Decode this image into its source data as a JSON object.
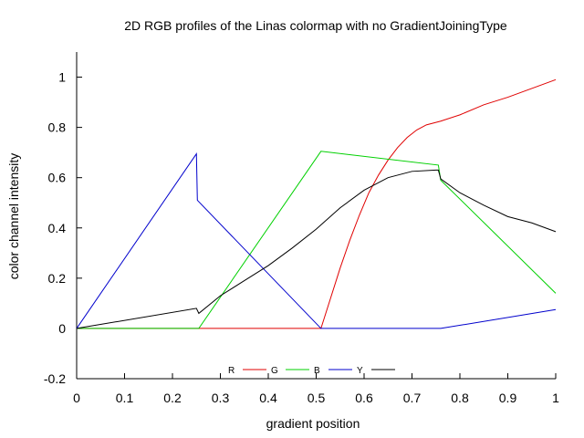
{
  "chart_data": {
    "type": "line",
    "title": "2D RGB profiles of the Linas colormap with no GradientJoiningType",
    "xlabel": "gradient position",
    "ylabel": "color channel intensity",
    "xlim": [
      0,
      1
    ],
    "ylim": [
      -0.2,
      1.1
    ],
    "xticks": [
      "0",
      "0.1",
      "0.2",
      "0.3",
      "0.4",
      "0.5",
      "0.6",
      "0.7",
      "0.8",
      "0.9",
      "1"
    ],
    "yticks": [
      "-0.2",
      "0",
      "0.2",
      "0.4",
      "0.6",
      "0.8",
      "1"
    ],
    "xtick_values": [
      0,
      0.1,
      0.2,
      0.3,
      0.4,
      0.5,
      0.6,
      0.7,
      0.8,
      0.9,
      1
    ],
    "ytick_values": [
      -0.2,
      0,
      0.2,
      0.4,
      0.6,
      0.8,
      1
    ],
    "legend_position": "bottom-center",
    "grid": false,
    "series": [
      {
        "name": "R",
        "color": "#e00000",
        "x": [
          0,
          0.25,
          0.51,
          0.53,
          0.55,
          0.57,
          0.59,
          0.61,
          0.63,
          0.65,
          0.67,
          0.69,
          0.71,
          0.73,
          0.75,
          0.76,
          0.8,
          0.85,
          0.9,
          0.95,
          1.0
        ],
        "y": [
          0,
          0,
          0,
          0.12,
          0.24,
          0.35,
          0.45,
          0.54,
          0.61,
          0.67,
          0.72,
          0.76,
          0.79,
          0.81,
          0.82,
          0.825,
          0.85,
          0.89,
          0.92,
          0.955,
          0.99
        ]
      },
      {
        "name": "G",
        "color": "#00d000",
        "x": [
          0,
          0.255,
          0.51,
          0.755,
          0.76,
          1.0
        ],
        "y": [
          0,
          0,
          0.705,
          0.65,
          0.59,
          0.14
        ]
      },
      {
        "name": "B",
        "color": "#0000cc",
        "x": [
          0,
          0.25,
          0.252,
          0.51,
          0.76,
          1.0
        ],
        "y": [
          0,
          0.695,
          0.51,
          0,
          0,
          0.075
        ]
      },
      {
        "name": "Y",
        "color": "#000000",
        "x": [
          0,
          0.25,
          0.255,
          0.3,
          0.35,
          0.4,
          0.45,
          0.5,
          0.55,
          0.6,
          0.65,
          0.7,
          0.75,
          0.755,
          0.76,
          0.8,
          0.85,
          0.9,
          0.95,
          1.0
        ],
        "y": [
          0,
          0.08,
          0.06,
          0.13,
          0.19,
          0.25,
          0.32,
          0.395,
          0.48,
          0.55,
          0.6,
          0.625,
          0.63,
          0.63,
          0.595,
          0.54,
          0.49,
          0.445,
          0.42,
          0.385
        ]
      }
    ]
  }
}
